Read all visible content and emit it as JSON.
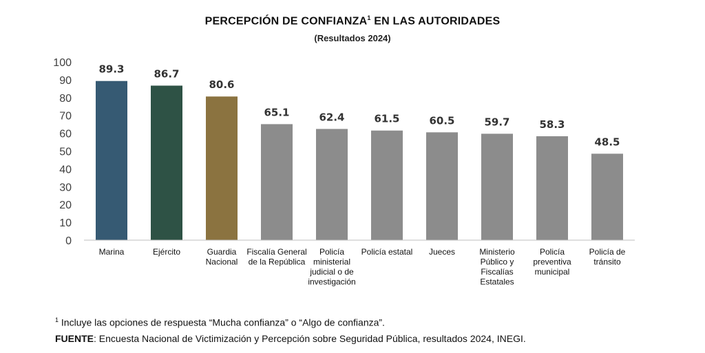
{
  "chart_data": {
    "type": "bar",
    "title": "PERCEPCIÓN DE CONFIANZA",
    "title_superscript": "1",
    "title_suffix": " EN LAS AUTORIDADES",
    "subtitle": "(Resultados 2024)",
    "categories": [
      [
        "Marina"
      ],
      [
        "Ejército"
      ],
      [
        "Guardia",
        "Nacional"
      ],
      [
        "Fiscalía General",
        "de la República"
      ],
      [
        "Policía",
        "ministerial",
        "judicial o de",
        "investigación"
      ],
      [
        "Policía estatal"
      ],
      [
        "Jueces"
      ],
      [
        "Ministerio",
        "Público y",
        "Fiscalías",
        "Estatales"
      ],
      [
        "Policía",
        "preventiva",
        "municipal"
      ],
      [
        "Policía de",
        "tránsito"
      ]
    ],
    "values": [
      89.3,
      86.7,
      80.6,
      65.1,
      62.4,
      61.5,
      60.5,
      59.7,
      58.3,
      48.5
    ],
    "value_labels": [
      "89.3",
      "86.7",
      "80.6",
      "65.1",
      "62.4",
      "61.5",
      "60.5",
      "59.7",
      "58.3",
      "48.5"
    ],
    "colors": [
      "#365a73",
      "#2e5245",
      "#8b7340",
      "#8c8c8c",
      "#8c8c8c",
      "#8c8c8c",
      "#8c8c8c",
      "#8c8c8c",
      "#8c8c8c",
      "#8c8c8c"
    ],
    "yticks": [
      "0",
      "10",
      "20",
      "30",
      "40",
      "50",
      "60",
      "70",
      "80",
      "90",
      "100"
    ],
    "ylim": [
      0,
      100
    ],
    "grid": false,
    "legend": "none"
  },
  "footnote": {
    "marker": "1",
    "text": " Incluye las opciones de respuesta “Mucha confianza” o “Algo de confianza”."
  },
  "source": {
    "label": "FUENTE",
    "text": ": Encuesta Nacional de Victimización y Percepción sobre Seguridad Pública, resultados 2024, INEGI."
  }
}
